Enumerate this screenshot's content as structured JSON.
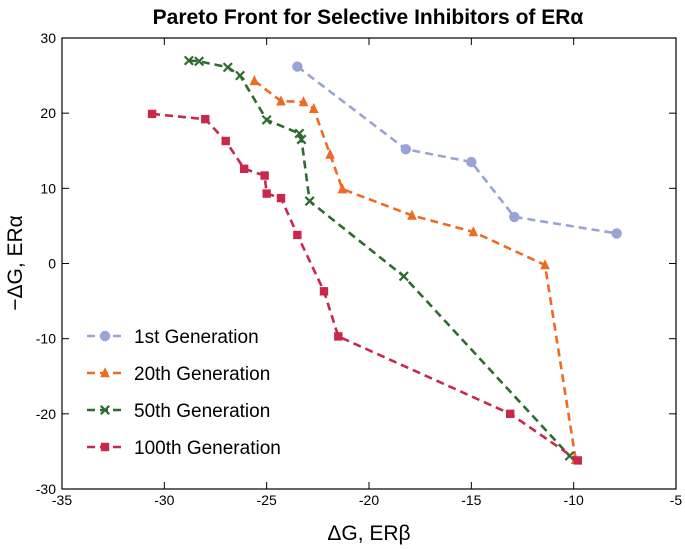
{
  "chart_data": {
    "type": "line",
    "title": "Pareto Front for Selective Inhibitors of ERα",
    "xlabel": "ΔG, ERβ",
    "ylabel": "−ΔG, ERα",
    "xlim": [
      -35,
      -5
    ],
    "ylim": [
      -30,
      30
    ],
    "xticks": [
      "-35",
      "-30",
      "-25",
      "-20",
      "-15",
      "-10",
      "-5"
    ],
    "yticks": [
      "30",
      "20",
      "10",
      "0",
      "-10",
      "-20",
      "-30"
    ],
    "xtick_values": [
      -35,
      -30,
      -25,
      -20,
      -15,
      -10,
      -5
    ],
    "ytick_values": [
      30,
      20,
      10,
      0,
      -10,
      -20,
      -30
    ],
    "grid": false,
    "legend_position": "lower-left",
    "series": [
      {
        "name": "1st Generation",
        "color": "#9aa3d6",
        "marker": "circle",
        "x": [
          -23.5,
          -18.2,
          -15.0,
          -12.9,
          -7.9
        ],
        "y": [
          26.2,
          15.2,
          13.5,
          6.2,
          4.0
        ]
      },
      {
        "name": "20th Generation",
        "color": "#ef6a22",
        "marker": "triangle",
        "x": [
          -25.6,
          -24.3,
          -23.2,
          -22.7,
          -21.9,
          -21.3,
          -17.9,
          -14.9,
          -11.4,
          -9.9
        ],
        "y": [
          24.3,
          21.6,
          21.5,
          20.6,
          14.5,
          9.9,
          6.4,
          4.2,
          -0.2,
          -26.1
        ]
      },
      {
        "name": "50th Generation",
        "color": "#2f6b2f",
        "marker": "x",
        "x": [
          -28.8,
          -28.3,
          -26.9,
          -26.3,
          -25.0,
          -23.4,
          -23.3,
          -22.9,
          -18.3,
          -10.2
        ],
        "y": [
          27.0,
          26.9,
          26.1,
          25.0,
          19.1,
          17.3,
          16.5,
          8.3,
          -1.7,
          -25.6
        ]
      },
      {
        "name": "100th Generation",
        "color": "#c8294a",
        "marker": "square",
        "x": [
          -30.6,
          -28.0,
          -27.0,
          -26.1,
          -25.1,
          -25.0,
          -24.3,
          -23.5,
          -22.2,
          -21.5,
          -13.1,
          -9.8
        ],
        "y": [
          19.9,
          19.2,
          16.3,
          12.6,
          11.7,
          9.3,
          8.7,
          3.8,
          -3.7,
          -9.7,
          -20.0,
          -26.2
        ]
      }
    ]
  }
}
